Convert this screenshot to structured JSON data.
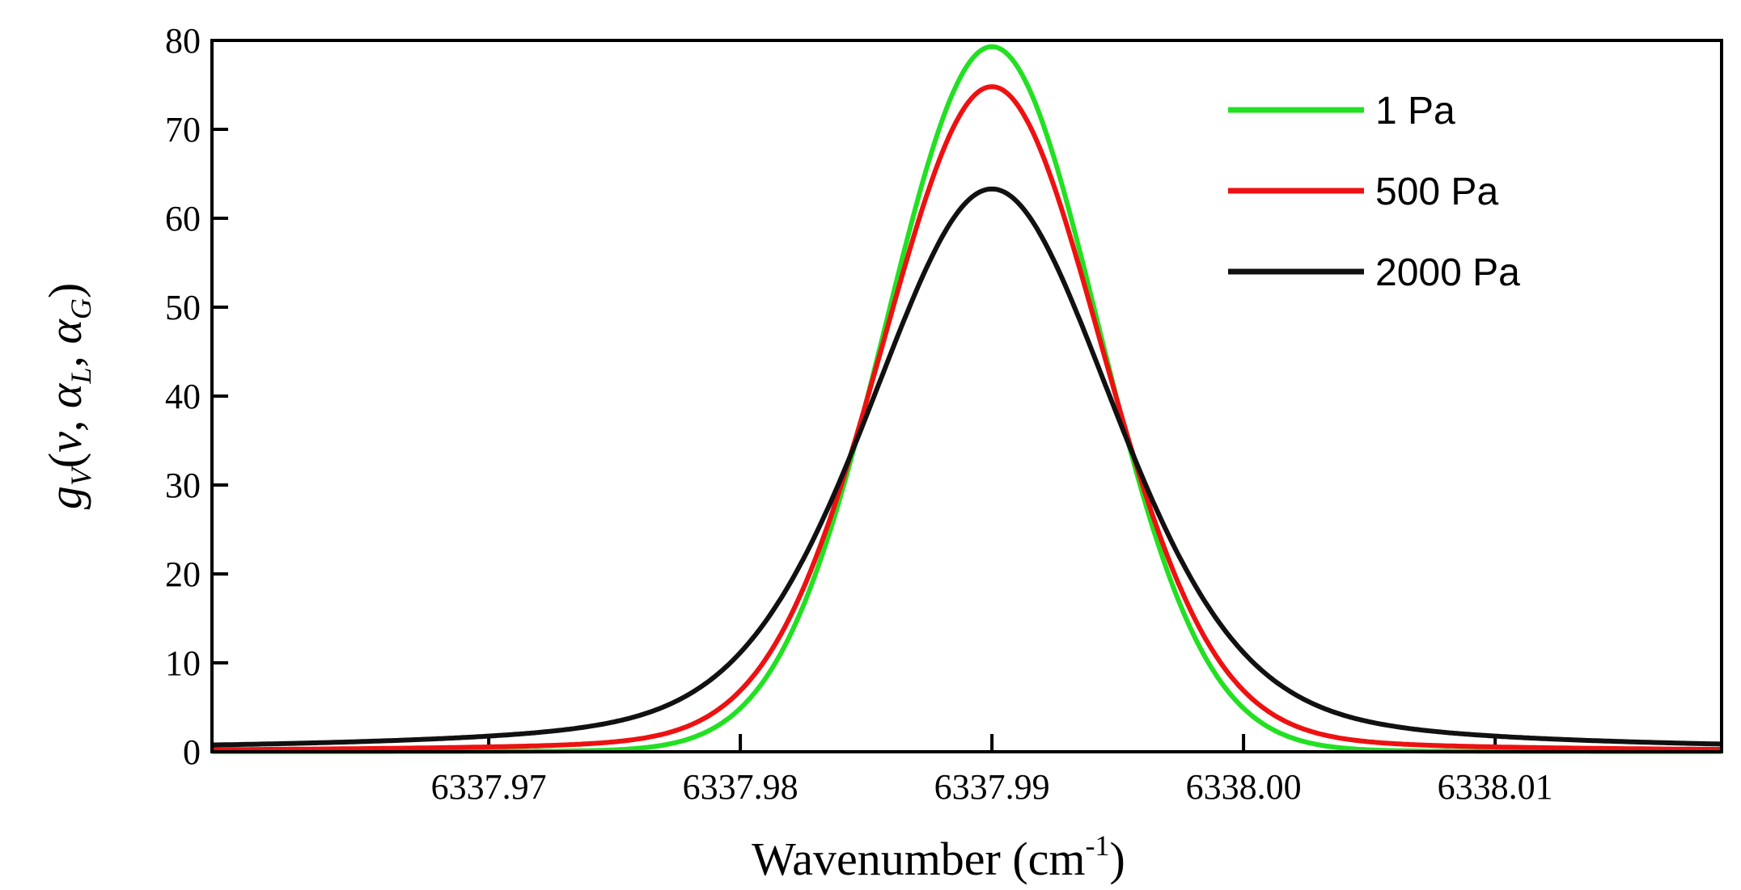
{
  "chart_data": {
    "type": "line",
    "xlabel": "Wavenumber (cm",
    "xlabel_sup": "-1",
    "xlabel_close": ")",
    "ylabel": {
      "g": "g",
      "g_sub": "V",
      "open": "(",
      "nu": "v",
      "comma1": ", ",
      "alpha1": "α",
      "alpha1_sub": "L",
      "comma2": ", ",
      "alpha2": "α",
      "alpha2_sub": "G",
      "close": ")"
    },
    "xlim": [
      6337.959,
      6338.019
    ],
    "ylim": [
      0,
      80
    ],
    "x_ticks": [
      6337.97,
      6337.98,
      6337.99,
      6338.0,
      6338.01
    ],
    "x_tick_labels": [
      "6337.97",
      "6337.98",
      "6337.99",
      "6338.00",
      "6338.01"
    ],
    "y_ticks": [
      0,
      10,
      20,
      30,
      40,
      50,
      60,
      70,
      80
    ],
    "y_tick_labels": [
      "0",
      "10",
      "20",
      "30",
      "40",
      "50",
      "60",
      "70",
      "80"
    ],
    "grid": false,
    "legend_position": "top-right",
    "center": 6337.99,
    "series": [
      {
        "name": "1 Pa",
        "color": "#22e022",
        "peak": 79.3,
        "gauss_hwhm": 0.00495,
        "lorentz_hwhm": 3.5e-05
      },
      {
        "name": "500 Pa",
        "color": "#ee1111",
        "peak": 74.8,
        "gauss_hwhm": 0.00495,
        "lorentz_hwhm": 0.00045
      },
      {
        "name": "2000 Pa",
        "color": "#111111",
        "peak": 63.3,
        "gauss_hwhm": 0.00495,
        "lorentz_hwhm": 0.00165
      }
    ]
  }
}
